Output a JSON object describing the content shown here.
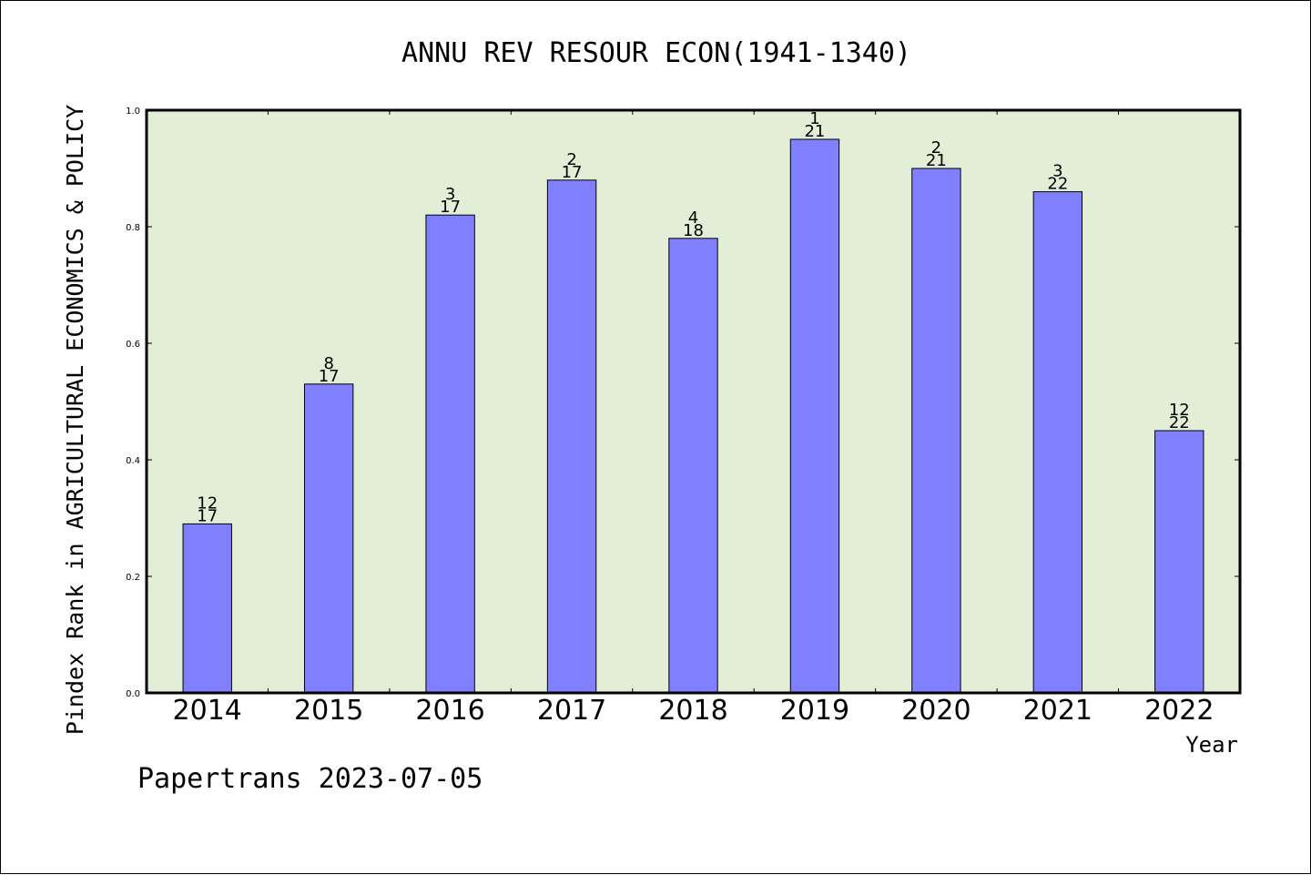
{
  "colors": {
    "plot_background": "#e2efd6",
    "bar_fill": "#8080ff",
    "bar_stroke": "#000000"
  },
  "footer": "Papertrans 2023-07-05",
  "chart_data": {
    "type": "bar",
    "title": "ANNU REV RESOUR ECON(1941-1340)",
    "xlabel": "Year",
    "ylabel": "Pindex Rank in AGRICULTURAL ECONOMICS & POLICY",
    "ylim": [
      0,
      1.0
    ],
    "yticks": [
      "0.0",
      "0.2",
      "0.4",
      "0.6",
      "0.8",
      "1.0"
    ],
    "grid": false,
    "categories": [
      "2014",
      "2015",
      "2016",
      "2017",
      "2018",
      "2019",
      "2020",
      "2021",
      "2022"
    ],
    "values": [
      0.29,
      0.53,
      0.82,
      0.88,
      0.78,
      0.95,
      0.9,
      0.86,
      0.45
    ],
    "rank_labels": [
      "12",
      "8",
      "3",
      "2",
      "4",
      "1",
      "2",
      "3",
      "12"
    ],
    "total_labels": [
      "17",
      "17",
      "17",
      "17",
      "18",
      "21",
      "21",
      "22",
      "22"
    ]
  }
}
